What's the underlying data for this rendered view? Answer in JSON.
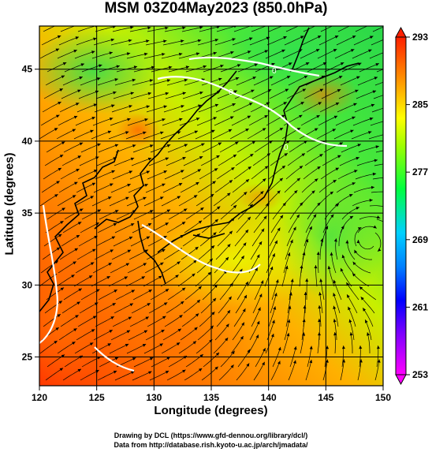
{
  "title": "MSM 03Z04May2023 (850.0hPa)",
  "axes": {
    "xlabel": "Longitude (degrees)",
    "ylabel": "Latitude  (degrees)",
    "x_ticks": [
      "120",
      "125",
      "130",
      "135",
      "140",
      "145",
      "150"
    ],
    "y_ticks": [
      "25",
      "30",
      "35",
      "40",
      "45"
    ],
    "x_range": [
      120,
      150
    ],
    "y_range": [
      23,
      48
    ]
  },
  "colorbar": {
    "ticks": [
      "293",
      "285",
      "277",
      "269",
      "261",
      "253"
    ],
    "range": [
      253,
      293
    ],
    "colors": [
      "#ff00ff",
      "#0000ff",
      "#00c0ff",
      "#00ff00",
      "#ffff00",
      "#ff7f00",
      "#ff2000"
    ]
  },
  "contour_labels": [
    "0",
    "0",
    "0"
  ],
  "credits": [
    "Drawing by DCL (https://www.gfd-dennou.org/library/dcl/)",
    "Data from http://database.rish.kyoto-u.ac.jp/arch/jmadata/"
  ]
}
